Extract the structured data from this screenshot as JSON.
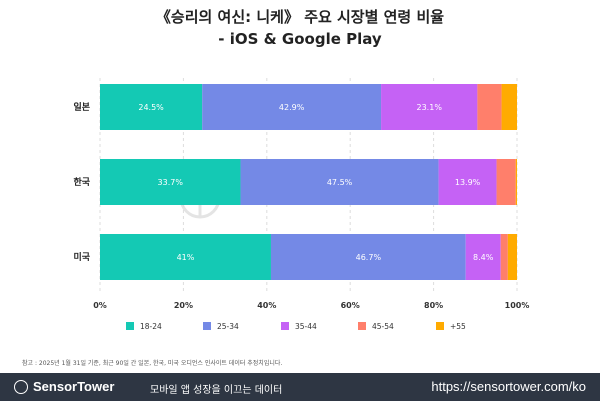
{
  "title_line1": "《승리의 여신: 니케》 주요 시장별 연령 비율",
  "title_line2": "- iOS & Google Play",
  "watermark": "SensorTower",
  "chart_data": {
    "type": "bar",
    "orientation": "horizontal",
    "stacked": true,
    "categories": [
      "일본",
      "한국",
      "미국"
    ],
    "xlim": [
      0,
      100
    ],
    "x_ticks": [
      "0%",
      "20%",
      "40%",
      "60%",
      "80%",
      "100%"
    ],
    "grid": true,
    "legend": "bottom",
    "series": [
      {
        "name": "18-24",
        "color": "#14c9b4",
        "values": [
          24.5,
          33.7,
          41
        ],
        "labels": [
          "24.5%",
          "33.7%",
          "41%"
        ]
      },
      {
        "name": "25-34",
        "color": "#7489e6",
        "values": [
          42.9,
          47.5,
          46.7
        ],
        "labels": [
          "42.9%",
          "47.5%",
          "46.7%"
        ]
      },
      {
        "name": "35-44",
        "color": "#c562f5",
        "values": [
          23.1,
          13.9,
          8.4
        ],
        "labels": [
          "23.1%",
          "13.9%",
          "8.4%"
        ]
      },
      {
        "name": "45-54",
        "color": "#ff7f6b",
        "values": [
          5.8,
          4.6,
          1.7
        ],
        "labels": [
          "",
          "",
          ""
        ]
      },
      {
        "name": "+55",
        "color": "#ffab00",
        "values": [
          3.7,
          0.3,
          2.2
        ],
        "labels": [
          "",
          "",
          ""
        ]
      }
    ]
  },
  "note": "참고 : 2025년 1월 31일 기준, 최근 90일 간 일본, 한국, 미국 오디언스 인사이트 데이터 추정치입니다.",
  "footer": {
    "logo": "SensorTower",
    "tagline": "모바일 앱 성장을 이끄는 데이터",
    "url": "https://sensortower.com/ko"
  }
}
